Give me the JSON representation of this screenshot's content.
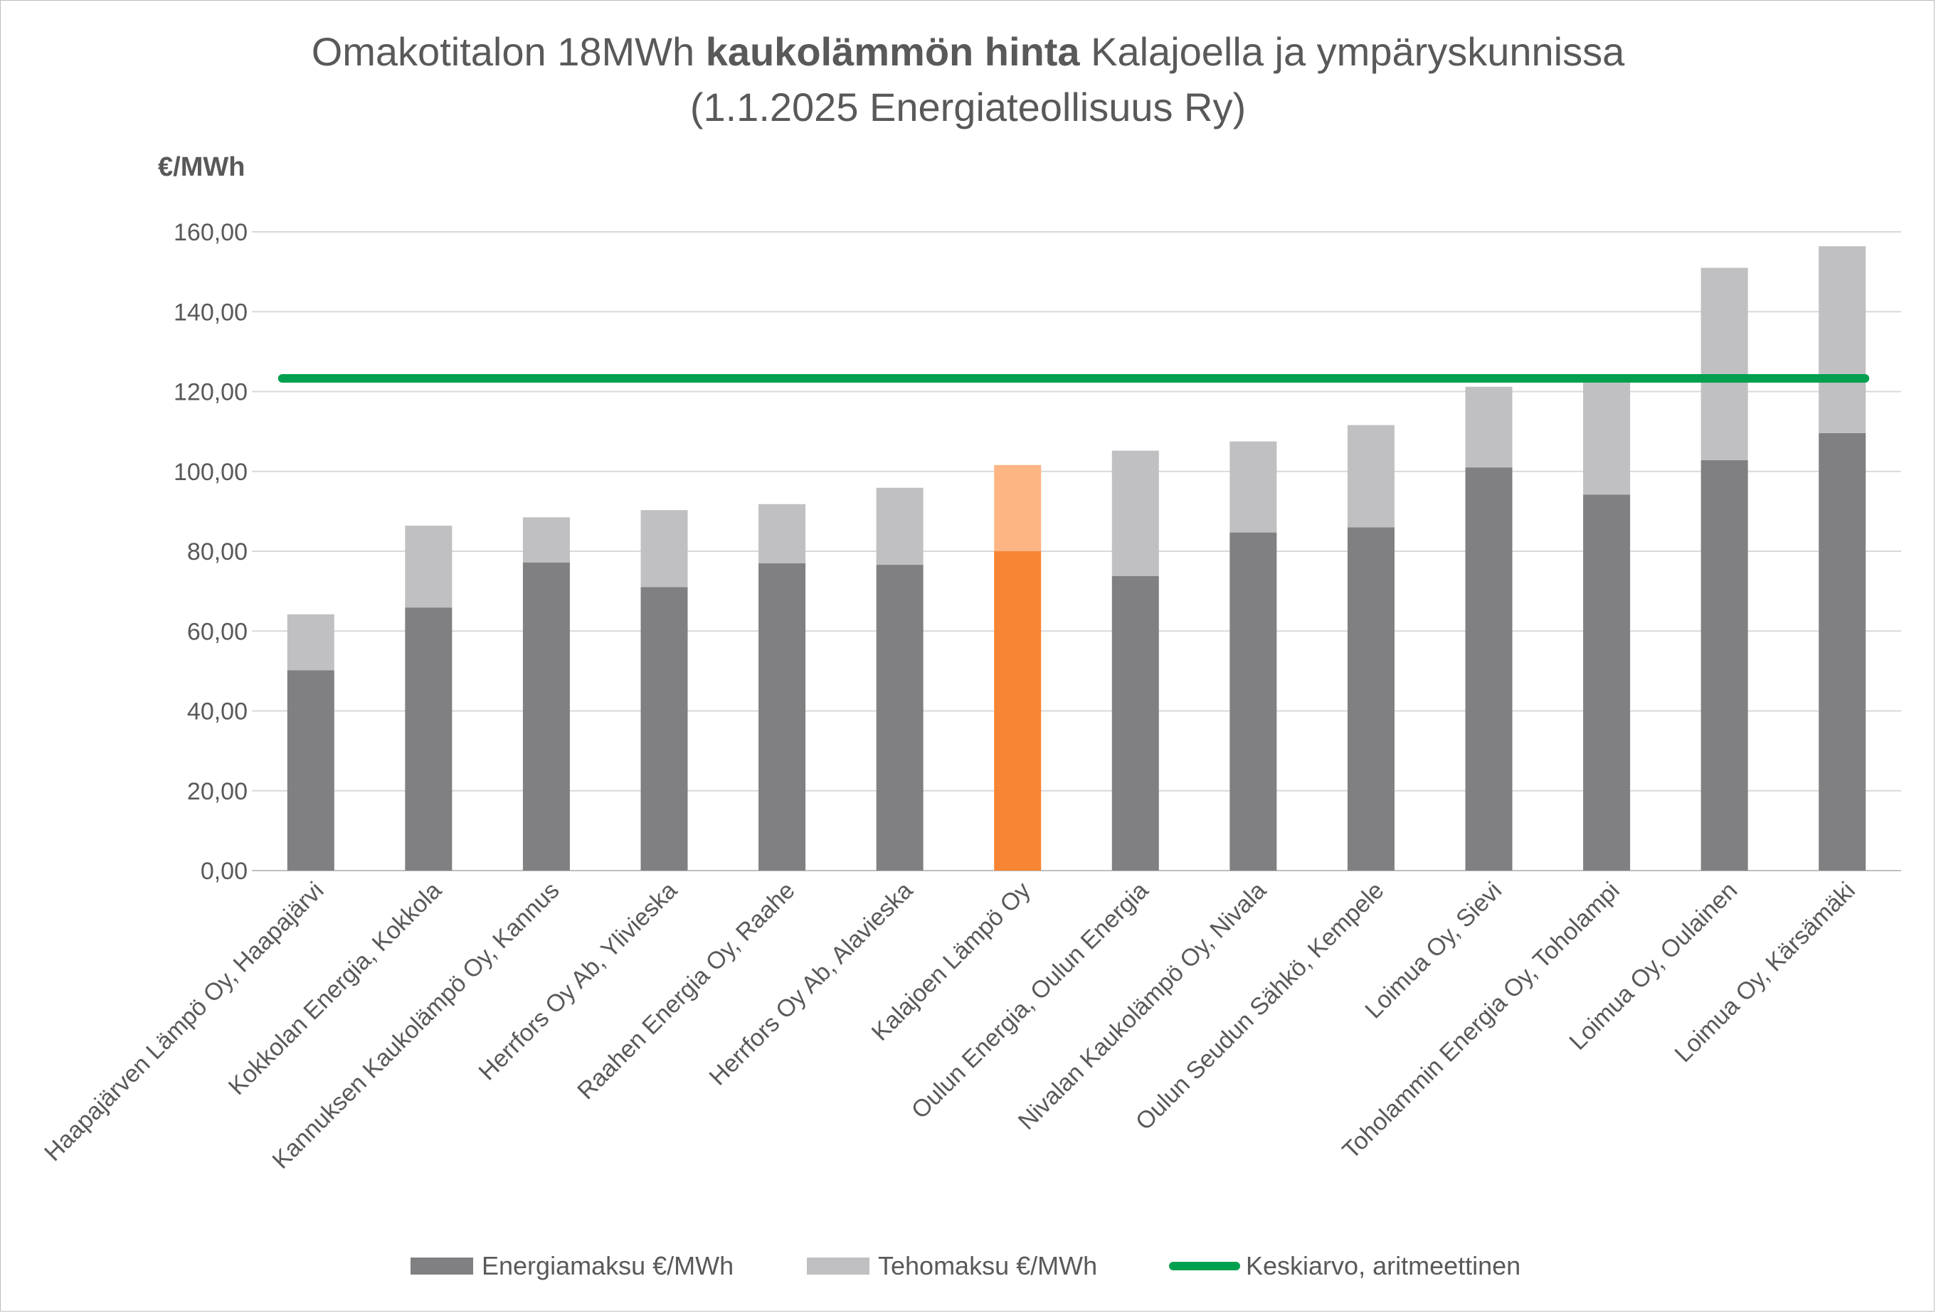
{
  "title": {
    "line1_pre": "Omakotitalon 18MWh ",
    "line1_bold": "kaukolämmön hinta",
    "line1_post": " Kalajoella ja ympäryskunnissa",
    "line2": "(1.1.2025 Energiateollisuus Ry)"
  },
  "chart_data": {
    "type": "bar",
    "stacked": true,
    "ylabel": "€/MWh",
    "ylim": [
      0,
      160
    ],
    "yticks": [
      "0,00",
      "20,00",
      "40,00",
      "60,00",
      "80,00",
      "100,00",
      "120,00",
      "140,00",
      "160,00"
    ],
    "categories": [
      "Haapajärven Lämpö Oy, Haapajärvi",
      "Kokkolan Energia, Kokkola",
      "Kannuksen Kaukolämpö Oy, Kannus",
      "Herrfors Oy Ab, Ylivieska",
      "Raahen Energia Oy, Raahe",
      "Herrfors Oy Ab, Alavieska",
      "Kalajoen Lämpö Oy",
      "Oulun Energia, Oulun Energia",
      "Nivalan Kaukolämpö Oy, Nivala",
      "Oulun Seudun Sähkö, Kempele",
      "Loimua Oy, Sievi",
      "Toholammin Energia Oy, Toholampi",
      "Loimua Oy, Oulainen",
      "Loimua Oy, Kärsämäki"
    ],
    "highlight_index": 6,
    "series": [
      {
        "name": "Energiamaksu €/MWh",
        "color": "#807f82",
        "highlight_color": "#f78533",
        "values": [
          50.2,
          65.9,
          77.2,
          71.0,
          77.0,
          76.6,
          80.0,
          73.8,
          84.7,
          86.0,
          101.0,
          94.2,
          102.8,
          109.6
        ]
      },
      {
        "name": "Tehomaksu €/MWh",
        "color": "#c0bfc1",
        "highlight_color": "#fdb584",
        "values": [
          14.0,
          20.5,
          11.3,
          19.3,
          14.8,
          19.3,
          21.6,
          31.4,
          22.8,
          25.6,
          20.2,
          28.0,
          48.2,
          46.8
        ]
      },
      {
        "name": "Keskiarvo, aritmeettinen",
        "type": "line",
        "color": "#00a050",
        "value": 123.3
      }
    ]
  }
}
